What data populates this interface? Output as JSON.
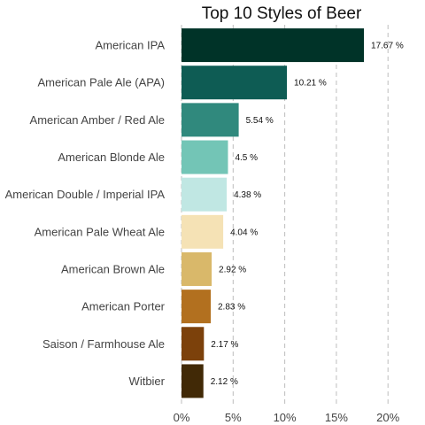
{
  "chart_data": {
    "type": "bar",
    "orientation": "horizontal",
    "title": "Top 10 Styles of Beer",
    "xlabel": "",
    "ylabel": "",
    "grid": "vertical-dashed",
    "xlim": [
      0,
      22
    ],
    "x_ticks": [
      0,
      5,
      10,
      15,
      20
    ],
    "x_tick_labels": [
      "0%",
      "5%",
      "10%",
      "15%",
      "20%"
    ],
    "categories": [
      "American IPA",
      "American Pale Ale (APA)",
      "American Amber / Red Ale",
      "American Blonde Ale",
      "American Double / Imperial IPA",
      "American Pale Wheat Ale",
      "American Brown Ale",
      "American Porter",
      "Saison / Farmhouse Ale",
      "Witbier"
    ],
    "values": [
      17.67,
      10.21,
      5.54,
      4.5,
      4.38,
      4.04,
      2.92,
      2.83,
      2.17,
      2.12
    ],
    "value_labels": [
      "17.67 %",
      "10.21 %",
      "5.54 %",
      "4.5 %",
      "4.38 %",
      "4.04 %",
      "2.92 %",
      "2.83 %",
      "2.17 %",
      "2.12 %"
    ],
    "colors": [
      "#003328",
      "#0e5c54",
      "#30897d",
      "#73c5b6",
      "#c0e7e3",
      "#f5e2b5",
      "#d9b86a",
      "#b2701f",
      "#7c410b",
      "#412906"
    ]
  }
}
